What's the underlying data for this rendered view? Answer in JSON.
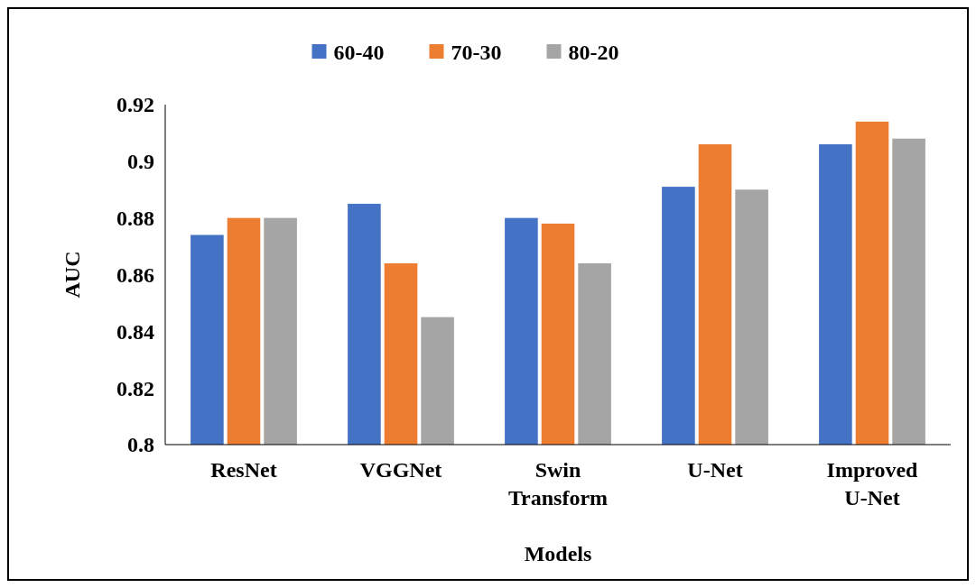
{
  "chart_data": {
    "type": "bar",
    "xlabel": "Models",
    "ylabel": "AUC",
    "categories": [
      "ResNet",
      "VGGNet",
      "Swin Transform",
      "U-Net",
      "Improved U-Net"
    ],
    "series": [
      {
        "name": "60-40",
        "color": "#4472c4",
        "values": [
          0.874,
          0.885,
          0.88,
          0.891,
          0.906
        ]
      },
      {
        "name": "70-30",
        "color": "#ed7d31",
        "values": [
          0.88,
          0.864,
          0.878,
          0.906,
          0.914
        ]
      },
      {
        "name": "80-20",
        "color": "#a5a5a5",
        "values": [
          0.88,
          0.845,
          0.864,
          0.89,
          0.908
        ]
      }
    ],
    "ylim": [
      0.8,
      0.92
    ],
    "yticks": [
      0.8,
      0.82,
      0.84,
      0.86,
      0.88,
      0.9,
      0.92
    ],
    "grid": false,
    "legend": "top"
  }
}
